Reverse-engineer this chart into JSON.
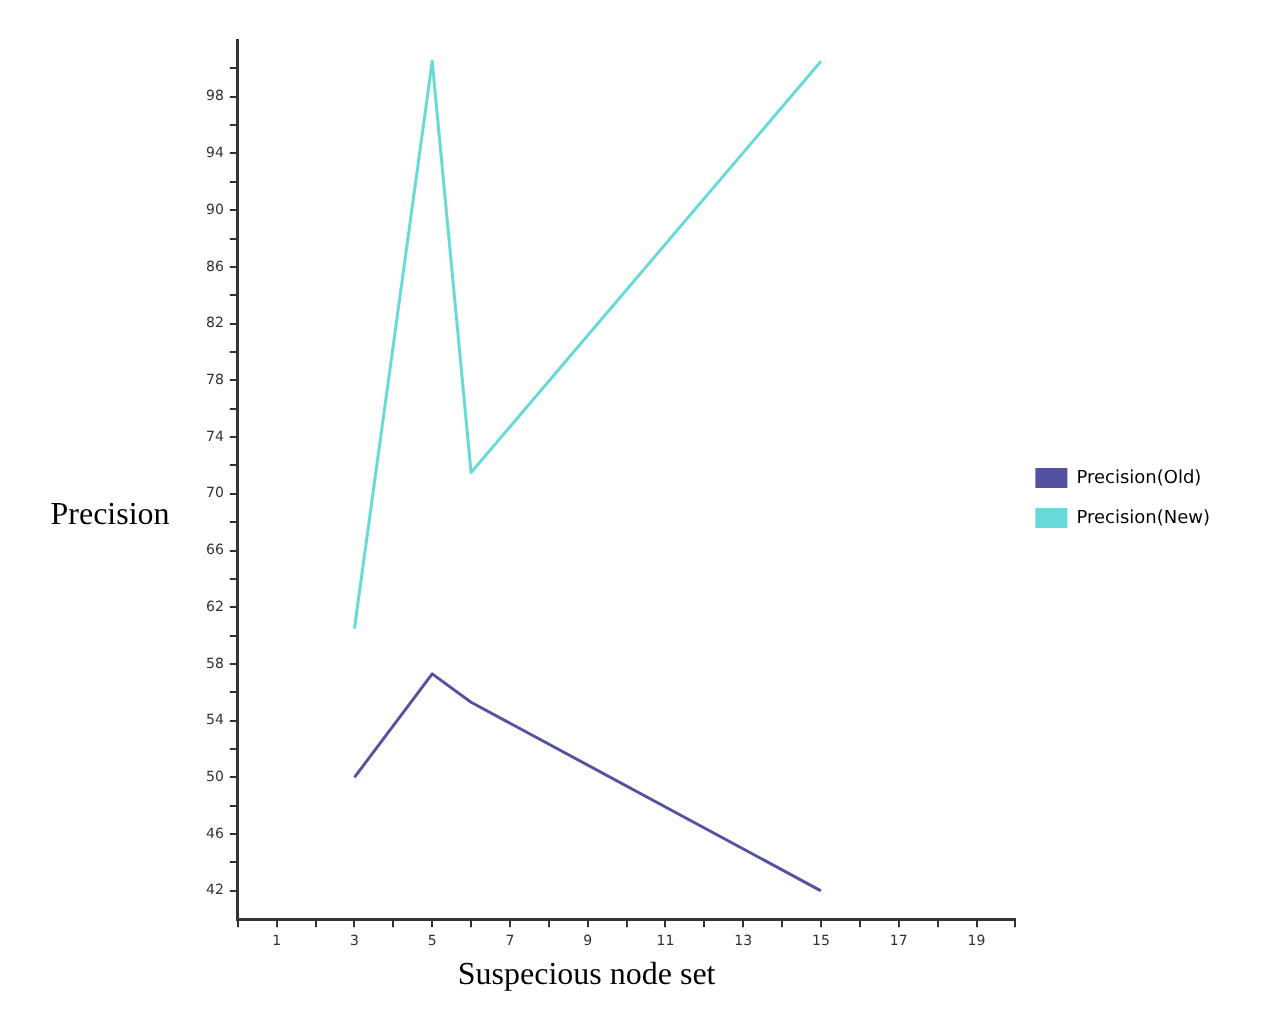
{
  "chart_data": {
    "type": "line",
    "xlabel": "Suspecious node set",
    "ylabel": "Precision",
    "xlim": [
      0,
      20
    ],
    "xticks": [
      {
        "value": 0,
        "label": null
      },
      1,
      {
        "value": 2,
        "label": null
      },
      3,
      {
        "value": 4,
        "label": null
      },
      5,
      {
        "value": 6,
        "label": null
      },
      7,
      {
        "value": 8,
        "label": null
      },
      9,
      {
        "value": 10,
        "label": null
      },
      11,
      {
        "value": 12,
        "label": null
      },
      13,
      {
        "value": 14,
        "label": null
      },
      15,
      {
        "value": 16,
        "label": null
      },
      17,
      {
        "value": 18,
        "label": null
      },
      19,
      {
        "value": 20,
        "label": null
      }
    ],
    "ylim": [
      40,
      102
    ],
    "yticks": [
      42,
      {
        "value": 44,
        "label": null
      },
      46,
      {
        "value": 48,
        "label": null
      },
      50,
      {
        "value": 52,
        "label": null
      },
      54,
      {
        "value": 56,
        "label": null
      },
      58,
      {
        "value": 60,
        "label": null
      },
      62,
      {
        "value": 64,
        "label": null
      },
      66,
      {
        "value": 68,
        "label": null
      },
      70,
      {
        "value": 72,
        "label": null
      },
      74,
      {
        "value": 76,
        "label": null
      },
      78,
      {
        "value": 80,
        "label": null
      },
      82,
      {
        "value": 84,
        "label": null
      },
      86,
      {
        "value": 88,
        "label": null
      },
      90,
      {
        "value": 92,
        "label": null
      },
      94,
      {
        "value": 96,
        "label": null
      },
      98,
      {
        "value": 100,
        "label": null
      }
    ],
    "grid": false,
    "legend": "right",
    "marker": "none",
    "line_style": "solid",
    "series": [
      {
        "name": "Precision(Old)",
        "color": "#5252a0",
        "x": [
          3,
          5,
          6,
          15
        ],
        "values": [
          50,
          57.3,
          55.3,
          42
        ]
      },
      {
        "name": "Precision(New)",
        "color": "#66d9d9",
        "x": [
          3,
          5,
          6,
          15
        ],
        "values": [
          60.5,
          100.5,
          71.5,
          100.5
        ]
      }
    ]
  }
}
